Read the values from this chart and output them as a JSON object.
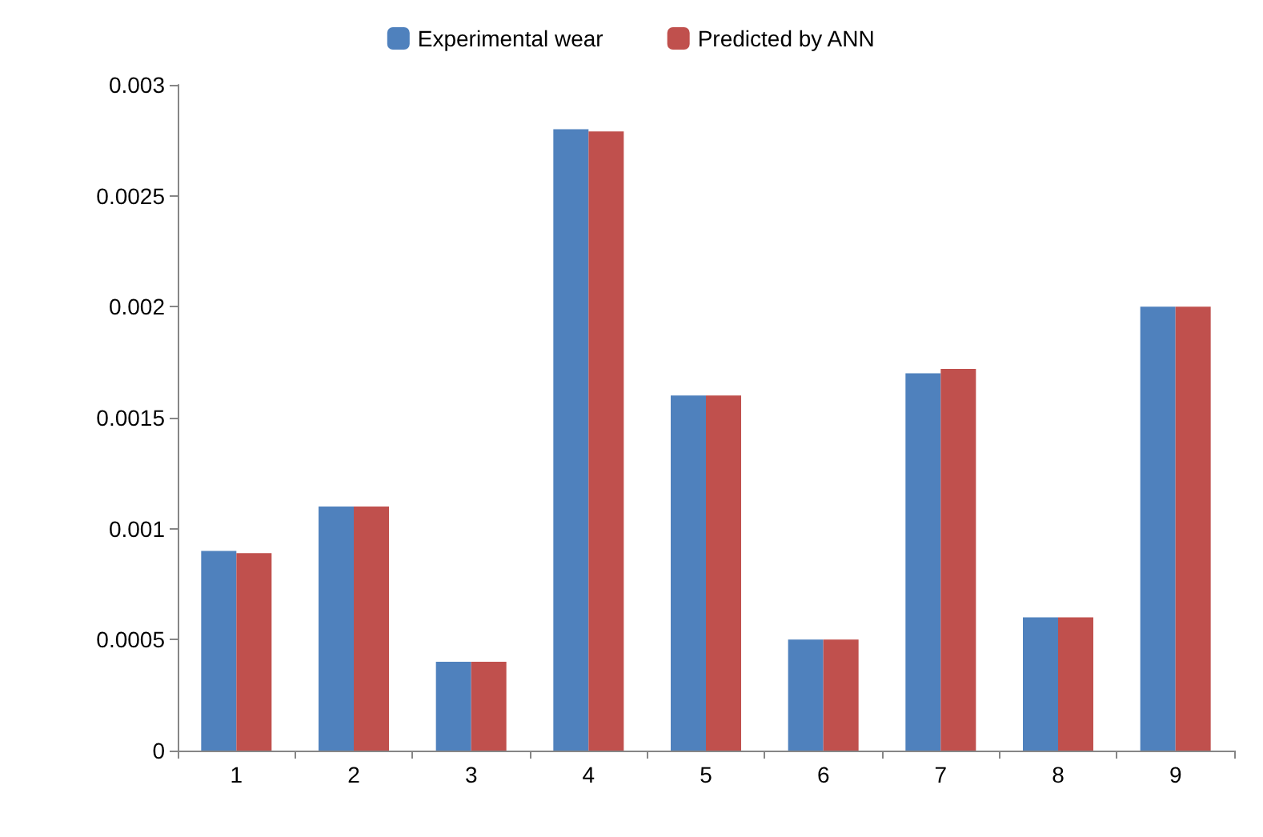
{
  "chart_data": {
    "type": "bar",
    "categories": [
      "1",
      "2",
      "3",
      "4",
      "5",
      "6",
      "7",
      "8",
      "9"
    ],
    "series": [
      {
        "name": "Experimental wear",
        "color": "#4f81bd",
        "values": [
          0.0009,
          0.0011,
          0.0004,
          0.0028,
          0.0016,
          0.0005,
          0.0017,
          0.0006,
          0.002
        ]
      },
      {
        "name": "Predicted by ANN",
        "color": "#c0504d",
        "values": [
          0.00089,
          0.0011,
          0.0004,
          0.00279,
          0.0016,
          0.0005,
          0.00172,
          0.0006,
          0.002
        ]
      }
    ],
    "ylim": [
      0,
      0.003
    ],
    "yticks": [
      0,
      0.0005,
      0.001,
      0.0015,
      0.002,
      0.0025,
      0.003
    ],
    "grid": false,
    "legend": "top"
  }
}
